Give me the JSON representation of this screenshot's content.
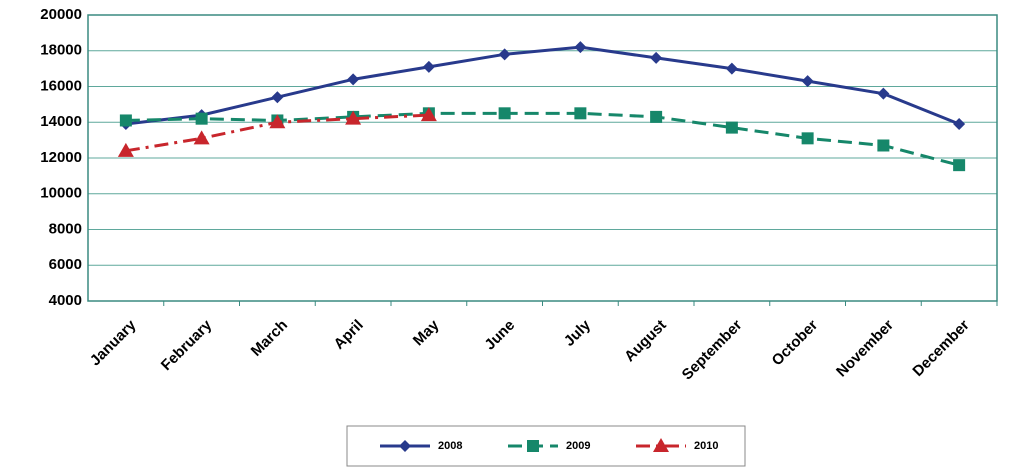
{
  "chart_data": {
    "type": "line",
    "categories": [
      "January",
      "February",
      "March",
      "April",
      "May",
      "June",
      "July",
      "August",
      "September",
      "October",
      "November",
      "December"
    ],
    "series": [
      {
        "name": "2008",
        "color": "#283a8c",
        "marker": "diamond",
        "dash": "solid",
        "values": [
          13900,
          14400,
          15400,
          16400,
          17100,
          17800,
          18200,
          17600,
          17000,
          16300,
          15600,
          13900
        ]
      },
      {
        "name": "2009",
        "color": "#16876a",
        "marker": "square",
        "dash": "dashed",
        "values": [
          14100,
          14200,
          14100,
          14300,
          14500,
          14500,
          14500,
          14300,
          13700,
          13100,
          12700,
          11600
        ]
      },
      {
        "name": "2010",
        "color": "#c8262c",
        "marker": "triangle",
        "dash": "dash-dot",
        "values": [
          12400,
          13100,
          14000,
          14200,
          14400,
          null,
          null,
          null,
          null,
          null,
          null,
          null
        ]
      }
    ],
    "ylim": [
      4000,
      20000
    ],
    "yticks": [
      4000,
      6000,
      8000,
      10000,
      12000,
      14000,
      16000,
      18000,
      20000
    ],
    "grid": true,
    "legend": "bottom"
  }
}
